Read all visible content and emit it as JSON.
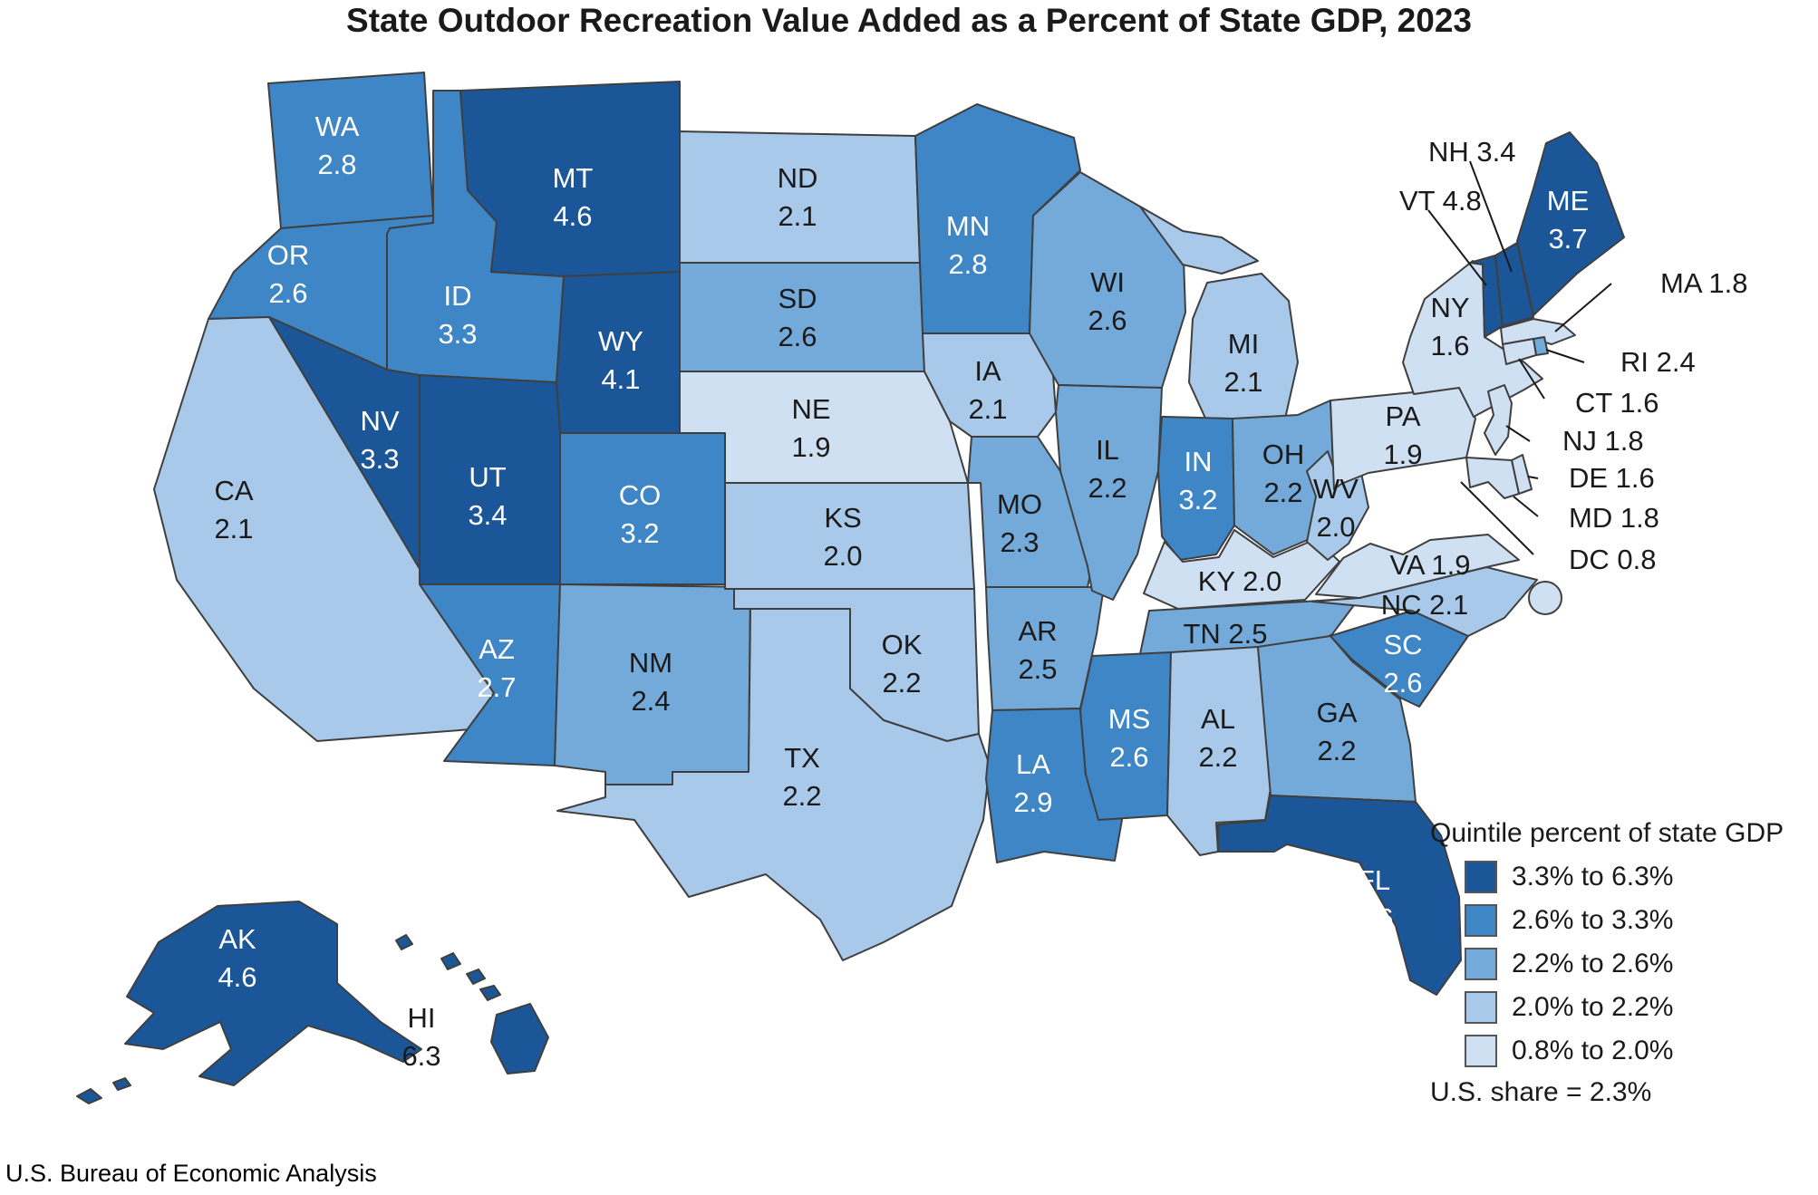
{
  "title": "State Outdoor Recreation Value Added as a Percent of State GDP, 2023",
  "source": "U.S. Bureau of Economic Analysis",
  "chart_data": {
    "type": "heatmap",
    "subtype": "us-state-choropleth",
    "title": "State Outdoor Recreation Value Added as a Percent of State GDP, 2023",
    "legend_title": "Quintile percent of state GDP",
    "us_share_note": "U.S. share = 2.3%",
    "unit": "percent of state GDP",
    "bins": [
      {
        "label": "3.3% to 6.3%",
        "color": "#1b5798"
      },
      {
        "label": "2.6% to 3.3%",
        "color": "#3e86c6"
      },
      {
        "label": "2.2% to 2.6%",
        "color": "#74aad9"
      },
      {
        "label": "2.0% to 2.2%",
        "color": "#a8c9ea"
      },
      {
        "label": "0.8% to 2.0%",
        "color": "#d0e0f3"
      }
    ],
    "border_color": "#3f3f3f",
    "label_colors": {
      "light": "#ffffff",
      "dark": "#1a1a1a"
    },
    "states": [
      {
        "abbr": "WA",
        "value": "2.8",
        "bin": 1,
        "label_color": "light"
      },
      {
        "abbr": "OR",
        "value": "2.6",
        "bin": 1,
        "label_color": "light"
      },
      {
        "abbr": "CA",
        "value": "2.1",
        "bin": 3,
        "label_color": "dark"
      },
      {
        "abbr": "NV",
        "value": "3.3",
        "bin": 0,
        "label_color": "light"
      },
      {
        "abbr": "ID",
        "value": "3.3",
        "bin": 1,
        "label_color": "light"
      },
      {
        "abbr": "MT",
        "value": "4.6",
        "bin": 0,
        "label_color": "light"
      },
      {
        "abbr": "WY",
        "value": "4.1",
        "bin": 0,
        "label_color": "light"
      },
      {
        "abbr": "UT",
        "value": "3.4",
        "bin": 0,
        "label_color": "light"
      },
      {
        "abbr": "CO",
        "value": "3.2",
        "bin": 1,
        "label_color": "light"
      },
      {
        "abbr": "AZ",
        "value": "2.7",
        "bin": 1,
        "label_color": "light"
      },
      {
        "abbr": "NM",
        "value": "2.4",
        "bin": 2,
        "label_color": "dark"
      },
      {
        "abbr": "ND",
        "value": "2.1",
        "bin": 3,
        "label_color": "dark"
      },
      {
        "abbr": "SD",
        "value": "2.6",
        "bin": 2,
        "label_color": "dark"
      },
      {
        "abbr": "NE",
        "value": "1.9",
        "bin": 4,
        "label_color": "dark"
      },
      {
        "abbr": "KS",
        "value": "2.0",
        "bin": 3,
        "label_color": "dark"
      },
      {
        "abbr": "OK",
        "value": "2.2",
        "bin": 3,
        "label_color": "dark"
      },
      {
        "abbr": "TX",
        "value": "2.2",
        "bin": 3,
        "label_color": "dark"
      },
      {
        "abbr": "MN",
        "value": "2.8",
        "bin": 1,
        "label_color": "light"
      },
      {
        "abbr": "IA",
        "value": "2.1",
        "bin": 3,
        "label_color": "dark"
      },
      {
        "abbr": "MO",
        "value": "2.3",
        "bin": 2,
        "label_color": "dark"
      },
      {
        "abbr": "AR",
        "value": "2.5",
        "bin": 2,
        "label_color": "dark"
      },
      {
        "abbr": "LA",
        "value": "2.9",
        "bin": 1,
        "label_color": "light"
      },
      {
        "abbr": "WI",
        "value": "2.6",
        "bin": 2,
        "label_color": "dark"
      },
      {
        "abbr": "IL",
        "value": "2.2",
        "bin": 2,
        "label_color": "dark"
      },
      {
        "abbr": "MI",
        "value": "2.1",
        "bin": 3,
        "label_color": "dark"
      },
      {
        "abbr": "IN",
        "value": "3.2",
        "bin": 1,
        "label_color": "light"
      },
      {
        "abbr": "OH",
        "value": "2.2",
        "bin": 2,
        "label_color": "dark"
      },
      {
        "abbr": "KY",
        "value": "2.0",
        "bin": 4,
        "label_color": "dark",
        "single_line": true
      },
      {
        "abbr": "TN",
        "value": "2.5",
        "bin": 2,
        "label_color": "dark",
        "single_line": true
      },
      {
        "abbr": "MS",
        "value": "2.6",
        "bin": 1,
        "label_color": "light"
      },
      {
        "abbr": "AL",
        "value": "2.2",
        "bin": 3,
        "label_color": "dark"
      },
      {
        "abbr": "GA",
        "value": "2.2",
        "bin": 2,
        "label_color": "dark"
      },
      {
        "abbr": "SC",
        "value": "2.6",
        "bin": 1,
        "label_color": "light"
      },
      {
        "abbr": "NC",
        "value": "2.1",
        "bin": 3,
        "label_color": "dark",
        "single_line": true
      },
      {
        "abbr": "VA",
        "value": "1.9",
        "bin": 4,
        "label_color": "dark",
        "single_line": true
      },
      {
        "abbr": "WV",
        "value": "2.0",
        "bin": 3,
        "label_color": "dark"
      },
      {
        "abbr": "PA",
        "value": "1.9",
        "bin": 4,
        "label_color": "dark"
      },
      {
        "abbr": "NY",
        "value": "1.6",
        "bin": 4,
        "label_color": "dark"
      },
      {
        "abbr": "FL",
        "value": "3.6",
        "bin": 0,
        "label_color": "light"
      },
      {
        "abbr": "ME",
        "value": "3.7",
        "bin": 0,
        "label_color": "light"
      },
      {
        "abbr": "VT",
        "value": "4.8",
        "bin": 0,
        "label_color": "dark",
        "callout": true
      },
      {
        "abbr": "NH",
        "value": "3.4",
        "bin": 0,
        "label_color": "dark",
        "callout": true
      },
      {
        "abbr": "MA",
        "value": "1.8",
        "bin": 4,
        "label_color": "dark",
        "callout": true
      },
      {
        "abbr": "RI",
        "value": "2.4",
        "bin": 2,
        "label_color": "dark",
        "callout": true
      },
      {
        "abbr": "CT",
        "value": "1.6",
        "bin": 4,
        "label_color": "dark",
        "callout": true
      },
      {
        "abbr": "NJ",
        "value": "1.8",
        "bin": 4,
        "label_color": "dark",
        "callout": true
      },
      {
        "abbr": "DE",
        "value": "1.6",
        "bin": 4,
        "label_color": "dark",
        "callout": true
      },
      {
        "abbr": "MD",
        "value": "1.8",
        "bin": 4,
        "label_color": "dark",
        "callout": true
      },
      {
        "abbr": "DC",
        "value": "0.8",
        "bin": 4,
        "label_color": "dark",
        "callout": true
      },
      {
        "abbr": "AK",
        "value": "4.6",
        "bin": 0,
        "label_color": "light"
      },
      {
        "abbr": "HI",
        "value": "6.3",
        "bin": 0,
        "label_color": "dark"
      }
    ]
  }
}
